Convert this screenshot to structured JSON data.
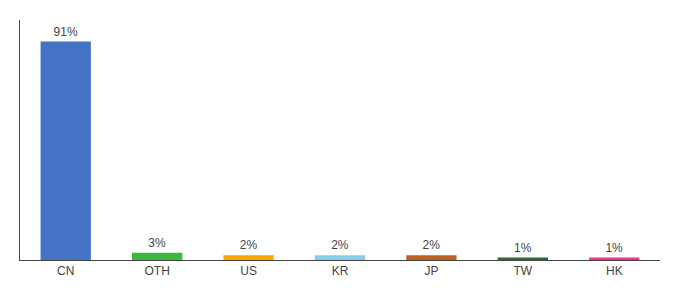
{
  "chart_data": {
    "type": "bar",
    "categories": [
      "CN",
      "OTH",
      "US",
      "KR",
      "JP",
      "TW",
      "HK"
    ],
    "values": [
      91,
      3,
      2,
      2,
      2,
      1,
      1
    ],
    "value_labels": [
      "91%",
      "3%",
      "2%",
      "2%",
      "2%",
      "1%",
      "1%"
    ],
    "colors": [
      "#4472C4",
      "#3CB840",
      "#FFA500",
      "#87CEEB",
      "#C06020",
      "#2D6A2D",
      "#E8388A"
    ],
    "ylim": [
      0,
      100
    ],
    "data_labels": true,
    "grid": false,
    "tick_labels": "x"
  }
}
